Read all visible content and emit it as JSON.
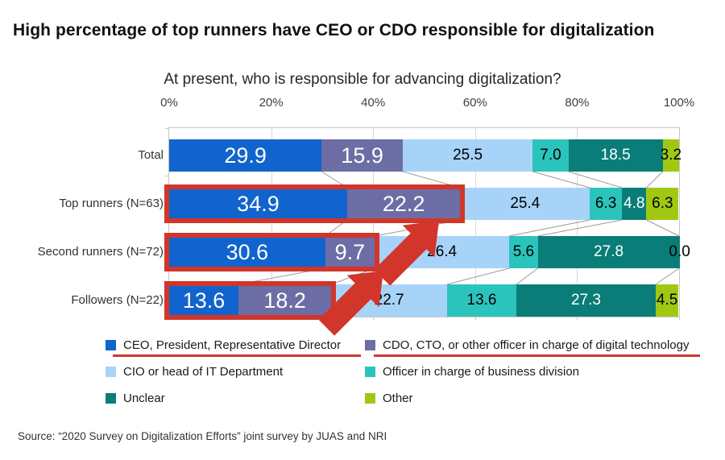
{
  "header": {
    "title": "High percentage of top runners have CEO or CDO responsible for digitalization",
    "subtitle": "At present, who is responsible for advancing digitalization?"
  },
  "source": "Source: “2020 Survey on Digitalization Efforts” joint survey by JUAS and NRI",
  "chart_data": {
    "type": "bar",
    "variant": "horizontal-stacked",
    "x_axis": {
      "tick_labels": [
        "0%",
        "20%",
        "40%",
        "60%",
        "80%",
        "100%"
      ],
      "tick_values": [
        0,
        20,
        40,
        60,
        80,
        100
      ],
      "range": [
        0,
        100
      ],
      "grid": true
    },
    "categories": [
      "Total",
      "Top runners (N=63)",
      "Second runners (N=72)",
      "Followers (N=22)"
    ],
    "series": [
      {
        "name": "CEO, President, Representative Director",
        "color": "#1164cd",
        "label_color": "#ffffff",
        "label_size": "big",
        "underlined": true,
        "values": [
          29.9,
          34.9,
          30.6,
          13.6
        ]
      },
      {
        "name": "CDO, CTO, or other officer in charge of digital technology",
        "color": "#6d6da6",
        "label_color": "#ffffff",
        "label_size": "big",
        "underlined": true,
        "values": [
          15.9,
          22.2,
          9.7,
          18.2
        ]
      },
      {
        "name": "CIO or head of IT Department",
        "color": "#a7d3f8",
        "label_color": "#000000",
        "label_size": "small",
        "underlined": false,
        "values": [
          25.5,
          25.4,
          26.4,
          22.7
        ]
      },
      {
        "name": "Officer in charge of business division",
        "color": "#2bc4bc",
        "label_color": "#000000",
        "label_size": "small",
        "underlined": false,
        "values": [
          7.0,
          6.3,
          5.6,
          13.6
        ]
      },
      {
        "name": "Unclear",
        "color": "#0b7d78",
        "label_color": "#ffffff",
        "label_size": "small",
        "underlined": false,
        "values": [
          18.5,
          4.8,
          27.8,
          27.3
        ]
      },
      {
        "name": "Other",
        "color": "#a0c813",
        "label_color": "#000000",
        "label_size": "small",
        "underlined": false,
        "values": [
          3.2,
          6.3,
          0.0,
          4.5
        ]
      }
    ],
    "annotations": {
      "highlight_boxes": {
        "rows": [
          1,
          2,
          3
        ],
        "series_count": 2,
        "color": "#d23529"
      },
      "arrow_count": 2,
      "arrow_color": "#d23529",
      "connector_color": "#9b9b9b"
    }
  }
}
